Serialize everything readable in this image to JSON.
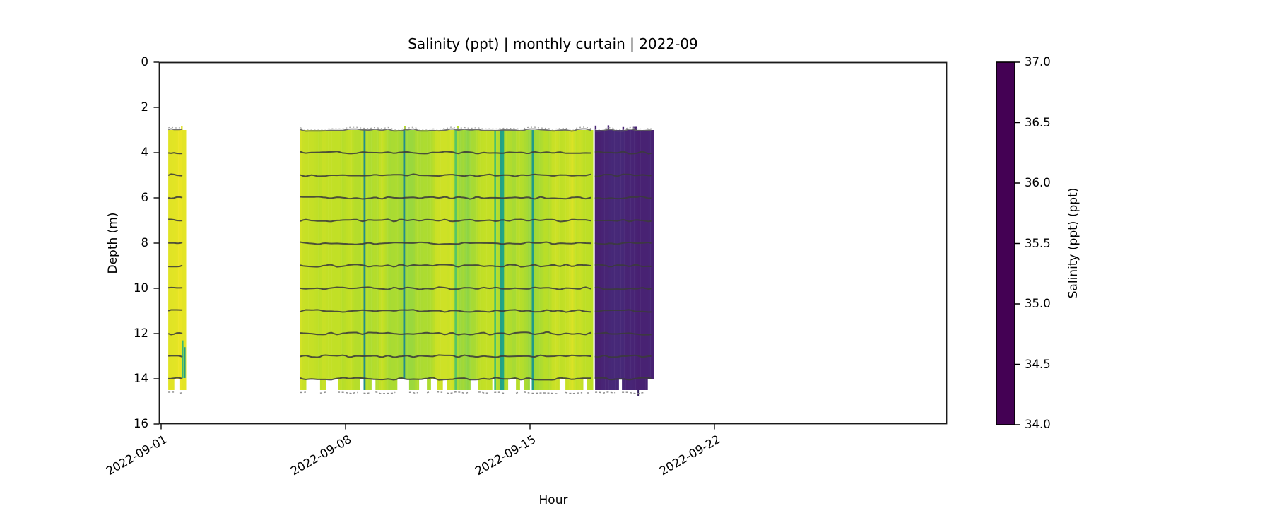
{
  "figure": {
    "background": "#ffffff",
    "text_color": "#000000",
    "spine_color": "#1a1a1a"
  },
  "chart_data": {
    "type": "heatmap",
    "title": "Salinity (ppt) | monthly curtain | 2022-09",
    "xlabel": "Hour",
    "ylabel": "Depth (m)",
    "x_tick_labels": [
      "2022-09-01",
      "2022-09-08",
      "2022-09-15",
      "2022-09-22"
    ],
    "x_tick_days": [
      0,
      7,
      14,
      21
    ],
    "xlim_days": [
      0,
      29.8
    ],
    "y_tick_labels": [
      "0",
      "2",
      "4",
      "6",
      "8",
      "10",
      "12",
      "14",
      "16"
    ],
    "y_tick_depths": [
      0,
      2,
      4,
      6,
      8,
      10,
      12,
      14,
      16
    ],
    "ylim": [
      16,
      0
    ],
    "grid": false,
    "colorbar": {
      "label": "Salinity (ppt) (ppt)",
      "tick_labels": [
        "37.0",
        "36.5",
        "36.0",
        "35.5",
        "35.0",
        "34.5",
        "34.0"
      ],
      "tick_values": [
        37.0,
        36.5,
        36.0,
        35.5,
        35.0,
        34.5,
        34.0
      ],
      "vmin": 34.0,
      "vmax": 37.0,
      "colormap": "viridis"
    },
    "viridis_stops": [
      [
        0.0,
        "#440154"
      ],
      [
        0.1,
        "#482475"
      ],
      [
        0.2,
        "#414487"
      ],
      [
        0.3,
        "#355f8d"
      ],
      [
        0.4,
        "#2a788e"
      ],
      [
        0.5,
        "#21918c"
      ],
      [
        0.6,
        "#22a884"
      ],
      [
        0.7,
        "#44bf70"
      ],
      [
        0.8,
        "#7ad151"
      ],
      [
        0.9,
        "#bddf26"
      ],
      [
        1.0,
        "#fde725"
      ]
    ],
    "sensor_line_depths": [
      3,
      4,
      5,
      6,
      7,
      8,
      9,
      10,
      11,
      12,
      13,
      14
    ],
    "sensor_line_color": "#3b3b3b",
    "top_line_color": "#5f5f5f",
    "speckle_color": "#8c8c8c",
    "segments": [
      {
        "id": "deployment-1",
        "start_day": 0.27,
        "end_day": 0.91,
        "top_depth": 3,
        "bottom_depth": 14,
        "ragged_bottom_depth": 14.5,
        "base_salinity": 36.88,
        "noise_amp": 0.07,
        "streak_chance": 0,
        "ragged_presence": 0.66,
        "seed": 11,
        "top_spike_chance": 0.02,
        "low_patches": [
          {
            "day": 0.78,
            "top_depth": 12.3,
            "bottom_depth": 14,
            "salinity": 36.0,
            "width_days": 0.05
          },
          {
            "day": 0.86,
            "top_depth": 12.6,
            "bottom_depth": 14,
            "salinity": 35.7,
            "width_days": 0.03
          }
        ]
      },
      {
        "id": "deployment-2",
        "start_day": 5.28,
        "end_day": 16.36,
        "top_depth": 3,
        "bottom_depth": 14,
        "ragged_bottom_depth": 14.5,
        "base_salinity": 36.67,
        "noise_amp": 0.17,
        "streak_chance": 1,
        "streak_salinity_min": 35.35,
        "streak_salinity_max": 36.25,
        "ragged_presence": 0.68,
        "seed": 29,
        "top_spike_chance": 0.01,
        "low_patches": []
      },
      {
        "id": "deployment-3",
        "start_day": 16.46,
        "end_day": 18.69,
        "top_depth": 3,
        "bottom_depth": 14,
        "ragged_bottom_depth": 14.5,
        "base_salinity": 34.3,
        "noise_amp": 0.06,
        "streak_chance": 0,
        "ragged_presence": 0.85,
        "ragged_blocks": [
          [
            16.47,
            17.3
          ],
          [
            17.49,
            18.42
          ]
        ],
        "deep_spike_day": 18.08,
        "seed": 53,
        "top_spike_chance": 0.17,
        "low_patches": []
      }
    ]
  }
}
